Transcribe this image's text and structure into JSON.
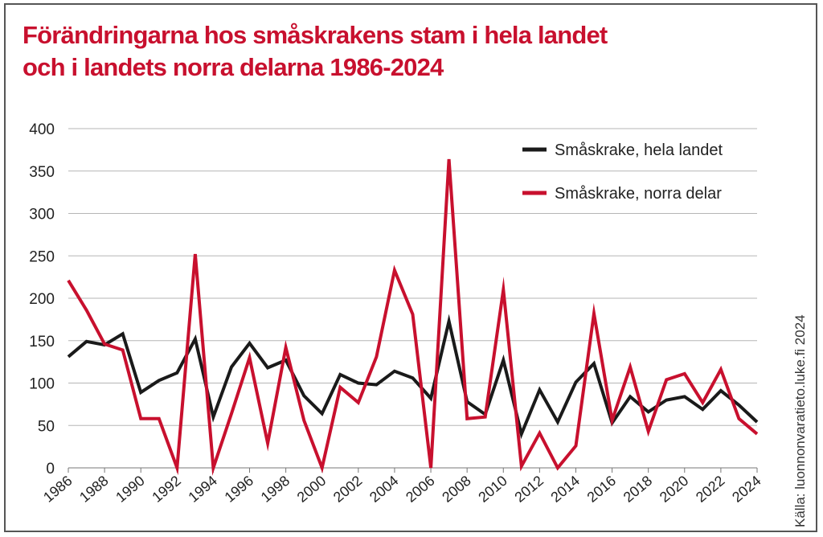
{
  "chart_data": {
    "type": "line",
    "title_line1": "Förändringarna hos småskrakens stam i hela landet",
    "title_line2": "och i landets norra delarna 1986-2024",
    "source": "Källa: luonnonvaratieto.luke.fi 2024",
    "ylim": [
      0,
      400
    ],
    "yticks": [
      "0",
      "50",
      "100",
      "150",
      "200",
      "250",
      "300",
      "350",
      "400"
    ],
    "xlim": [
      1986,
      2024
    ],
    "xticks": [
      "1986",
      "1988",
      "1990",
      "1992",
      "1994",
      "1996",
      "1998",
      "2000",
      "2002",
      "2004",
      "2006",
      "2008",
      "2010",
      "2012",
      "2014",
      "2016",
      "2018",
      "2020",
      "2022",
      "2024"
    ],
    "grid": true,
    "legend_position": "top-right",
    "x": [
      1986,
      1987,
      1988,
      1989,
      1990,
      1991,
      1992,
      1993,
      1994,
      1995,
      1996,
      1997,
      1998,
      1999,
      2000,
      2001,
      2002,
      2003,
      2004,
      2005,
      2006,
      2007,
      2008,
      2009,
      2010,
      2011,
      2012,
      2013,
      2014,
      2015,
      2016,
      2017,
      2018,
      2019,
      2020,
      2021,
      2022,
      2023,
      2024
    ],
    "series": [
      {
        "name": "Småskrake, hela landet",
        "color": "#1a1a1a",
        "values": [
          131,
          149,
          145,
          158,
          89,
          103,
          112,
          152,
          60,
          119,
          147,
          118,
          127,
          85,
          64,
          110,
          100,
          98,
          114,
          106,
          82,
          173,
          78,
          63,
          127,
          40,
          92,
          54,
          101,
          123,
          53,
          84,
          66,
          80,
          84,
          69,
          91,
          74,
          54
        ]
      },
      {
        "name": "Småskrake, norra delar",
        "color": "#c8102e",
        "values": [
          221,
          186,
          146,
          139,
          58,
          58,
          0,
          252,
          0,
          64,
          130,
          29,
          142,
          56,
          0,
          95,
          77,
          131,
          233,
          181,
          0,
          364,
          58,
          60,
          210,
          2,
          41,
          0,
          26,
          182,
          56,
          119,
          43,
          104,
          111,
          77,
          116,
          58,
          40
        ]
      }
    ]
  }
}
